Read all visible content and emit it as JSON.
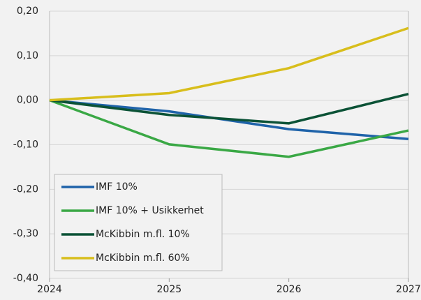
{
  "chart_data": {
    "type": "line",
    "x": [
      2024,
      2025,
      2026,
      2027
    ],
    "series": [
      {
        "name": "IMF 10%",
        "color": "#1f63a9",
        "values": [
          0,
          -0.025,
          -0.065,
          -0.087
        ]
      },
      {
        "name": "IMF 10% + Usikkerhet",
        "color": "#3aa845",
        "values": [
          0,
          -0.099,
          -0.127,
          -0.068
        ]
      },
      {
        "name": "McKibbin m.fl. 10%",
        "color": "#0b5236",
        "values": [
          0,
          -0.033,
          -0.052,
          0.014
        ]
      },
      {
        "name": "McKibbin m.fl. 60%",
        "color": "#d8be1c",
        "values": [
          0,
          0.016,
          0.072,
          0.162
        ]
      }
    ],
    "xlim": [
      2024,
      2027
    ],
    "xticks": [
      2024,
      2025,
      2026,
      2027
    ],
    "ylim": [
      -0.4,
      0.2
    ],
    "yticks": [
      {
        "value": 0.2,
        "label": "0,20"
      },
      {
        "value": 0.1,
        "label": "0,10"
      },
      {
        "value": 0,
        "label": "0,00"
      },
      {
        "value": -0.1,
        "label": "-0,10"
      },
      {
        "value": -0.2,
        "label": "-0,20"
      },
      {
        "value": -0.3,
        "label": "-0,30"
      },
      {
        "value": -0.4,
        "label": "-0,40"
      }
    ],
    "grid": true,
    "legend": "lower left"
  }
}
